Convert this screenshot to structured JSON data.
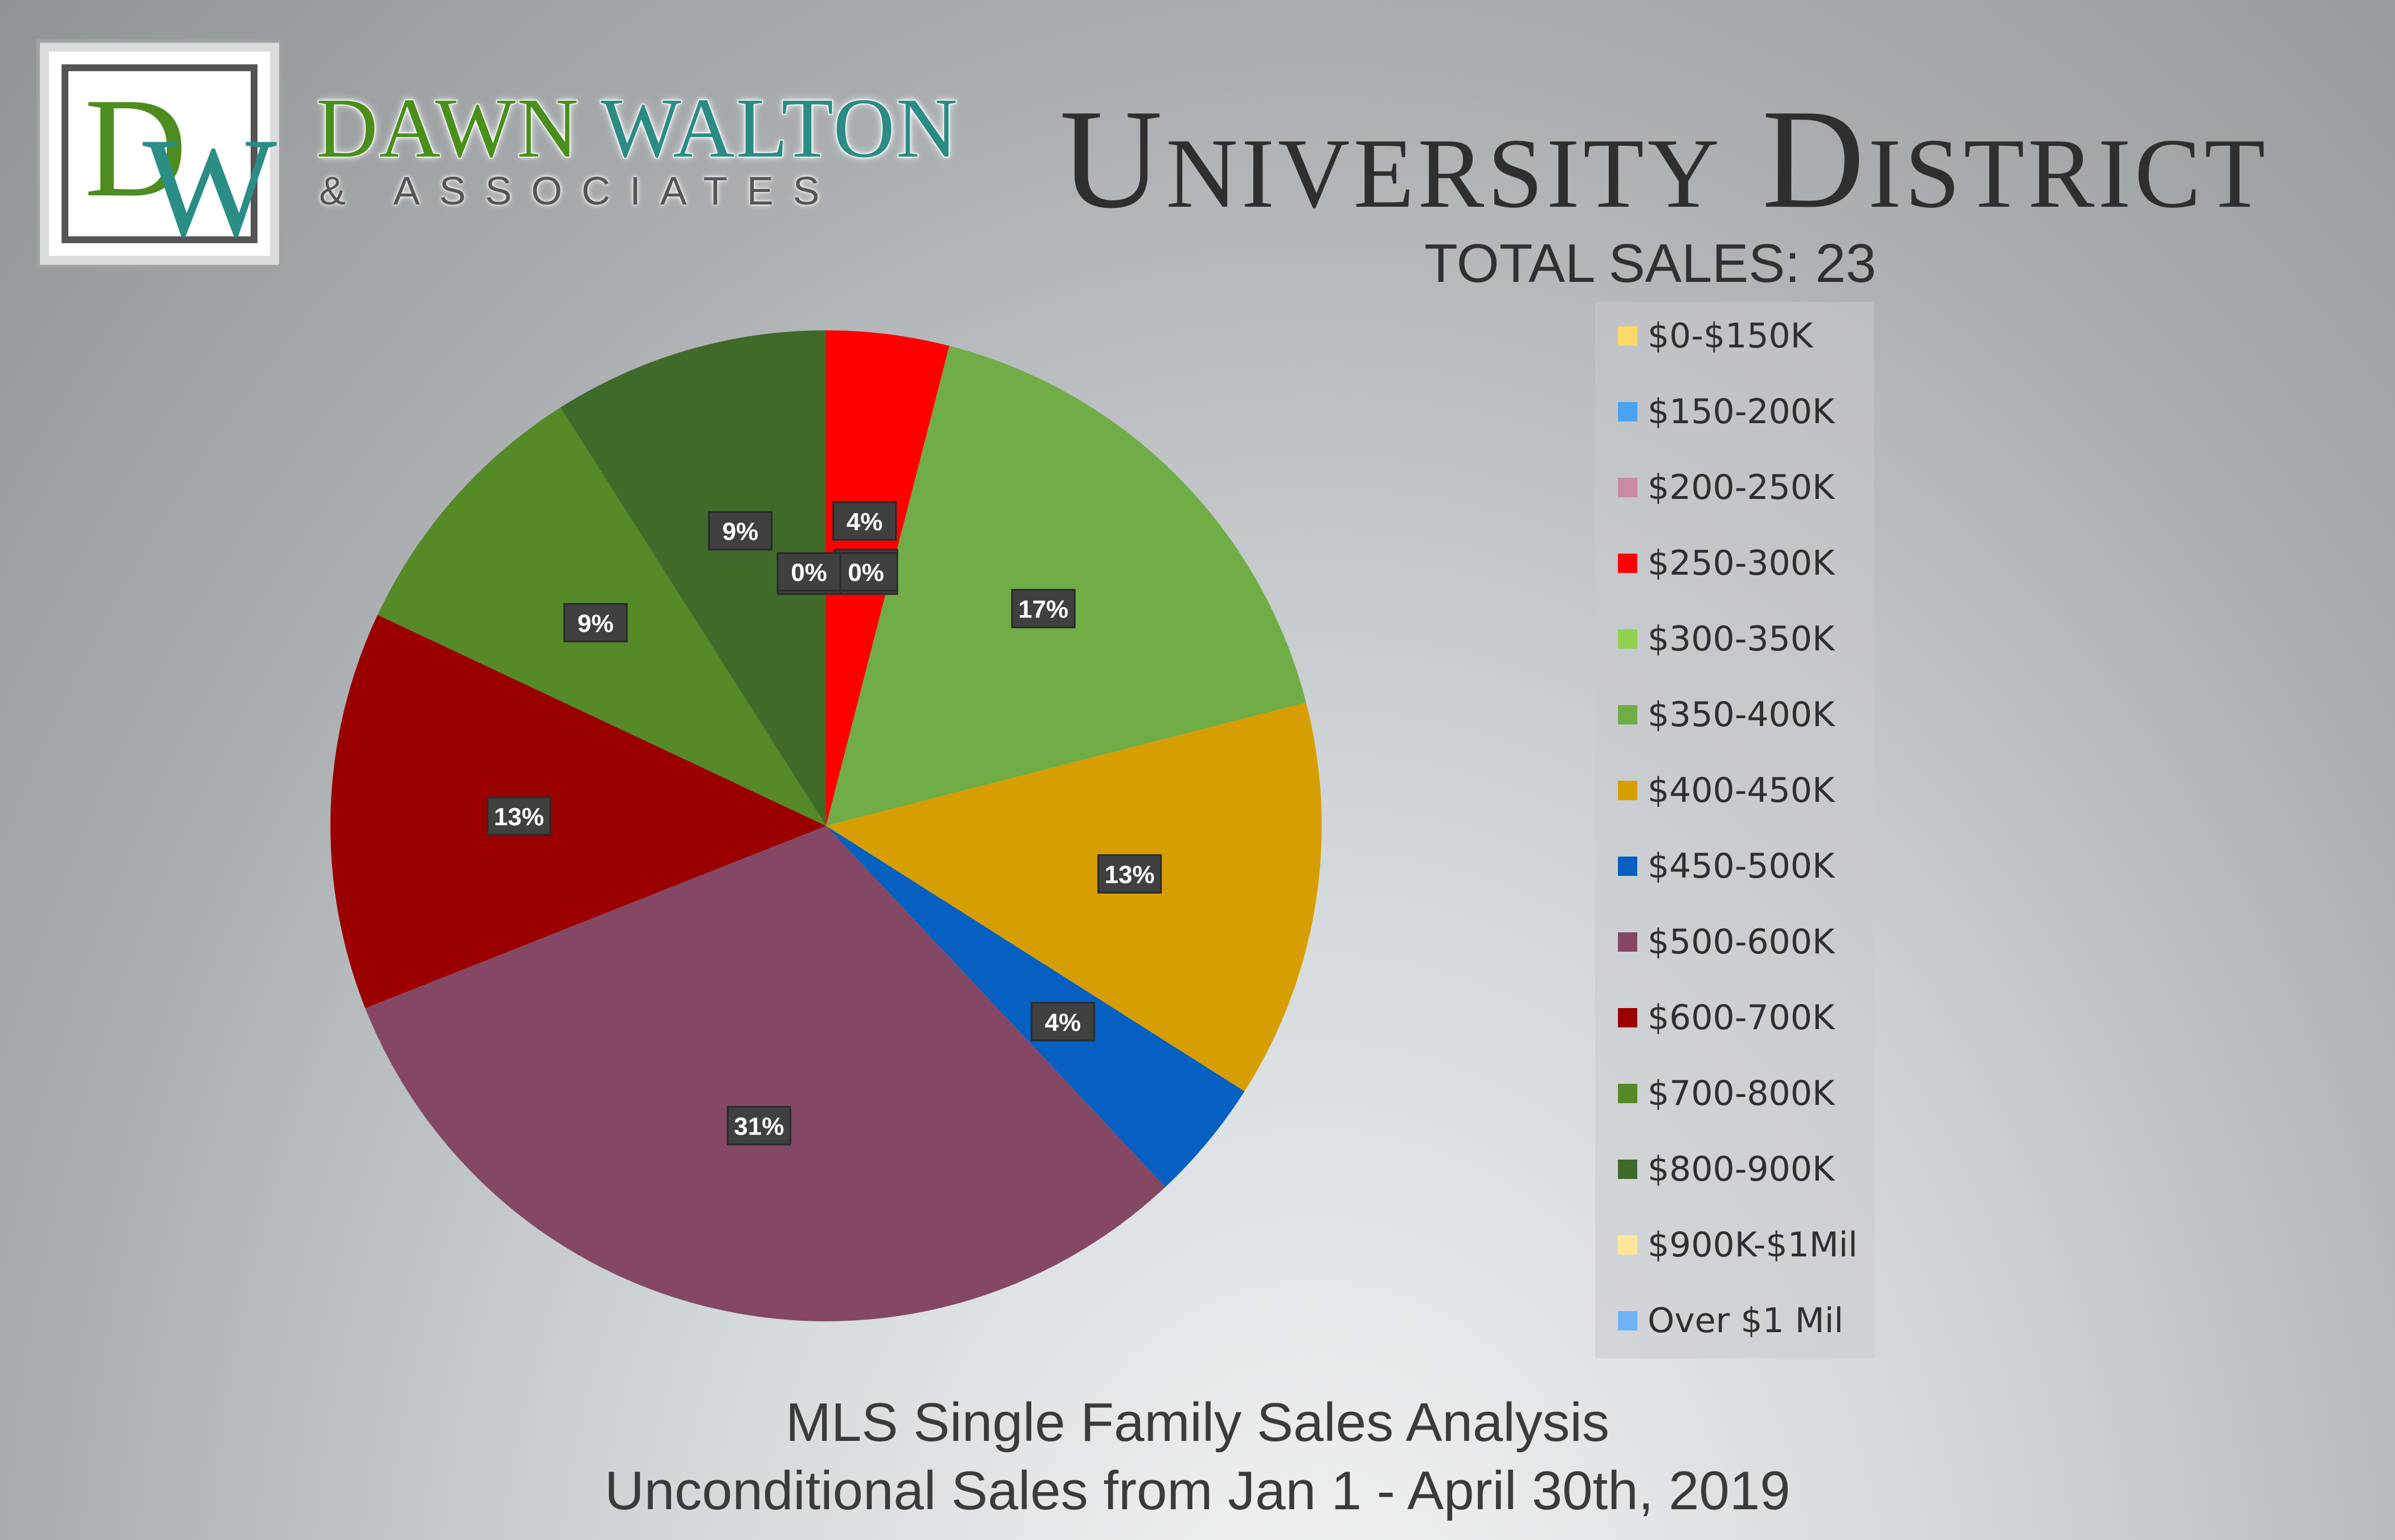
{
  "logo": {
    "letters_d": "D",
    "letters_w": "W"
  },
  "brand": {
    "name_part1": "DAWN",
    "name_part2": "WALTON",
    "tagline": "& ASSOCIATES"
  },
  "header": {
    "title": "University District",
    "total_sales": "TOTAL SALES: 23"
  },
  "footer": {
    "line1": "MLS Single Family Sales Analysis",
    "line2": "Unconditional Sales from Jan 1 - April 30th, 2019"
  },
  "chart_data": {
    "type": "pie",
    "categories": [
      "$0-$150K",
      "$150-200K",
      "$200-250K",
      "$250-300K",
      "$300-350K",
      "$350-400K",
      "$400-450K",
      "$450-500K",
      "$500-600K",
      "$600-700K",
      "$700-800K",
      "$800-900K",
      "$900K-$1Mil",
      "Over $1 Mil"
    ],
    "values": [
      0,
      0,
      0,
      4,
      0,
      17,
      13,
      4,
      31,
      13,
      9,
      9,
      0,
      0
    ],
    "labels": [
      "0%",
      "0%",
      "0%",
      "4%",
      "0%",
      "17%",
      "13%",
      "4%",
      "31%",
      "13%",
      "9%",
      "9%",
      "0%",
      "0%"
    ],
    "colors": [
      "#ffd966",
      "#4aa3f0",
      "#c98aa6",
      "#ff0000",
      "#92d050",
      "#70ad47",
      "#d69e00",
      "#0560c1",
      "#844865",
      "#9b0000",
      "#558a27",
      "#406a2a",
      "#ffe699",
      "#70b3f5"
    ],
    "legend_position": "right"
  }
}
